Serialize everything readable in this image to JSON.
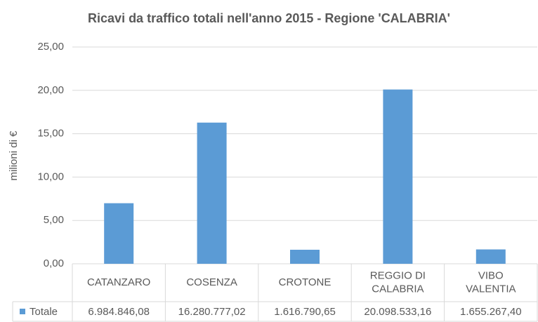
{
  "chart_data": {
    "type": "bar",
    "title": "Ricavi da traffico totali nell'anno 2015 - Regione 'CALABRIA'",
    "y_label": "milioni di €",
    "categories": [
      "CATANZARO",
      "COSENZA",
      "CROTONE",
      "REGGIO DI CALABRIA",
      "VIBO VALENTIA"
    ],
    "series": [
      {
        "name": "Totale",
        "color": "#5b9bd5",
        "values": [
          6.98484608,
          16.28077702,
          1.61679065,
          20.09853316,
          1.6552674
        ],
        "value_labels": [
          "6.984.846,08",
          "16.280.777,02",
          "1.616.790,65",
          "20.098.533,16",
          "1.655.267,40"
        ]
      }
    ],
    "ylim": [
      0,
      25
    ],
    "yticks": [
      {
        "value": 0,
        "label": "0,00"
      },
      {
        "value": 5,
        "label": "5,00"
      },
      {
        "value": 10,
        "label": "10,00"
      },
      {
        "value": 15,
        "label": "15,00"
      },
      {
        "value": 20,
        "label": "20,00"
      },
      {
        "value": 25,
        "label": "25,00"
      }
    ],
    "grid": true,
    "legend": "table"
  }
}
